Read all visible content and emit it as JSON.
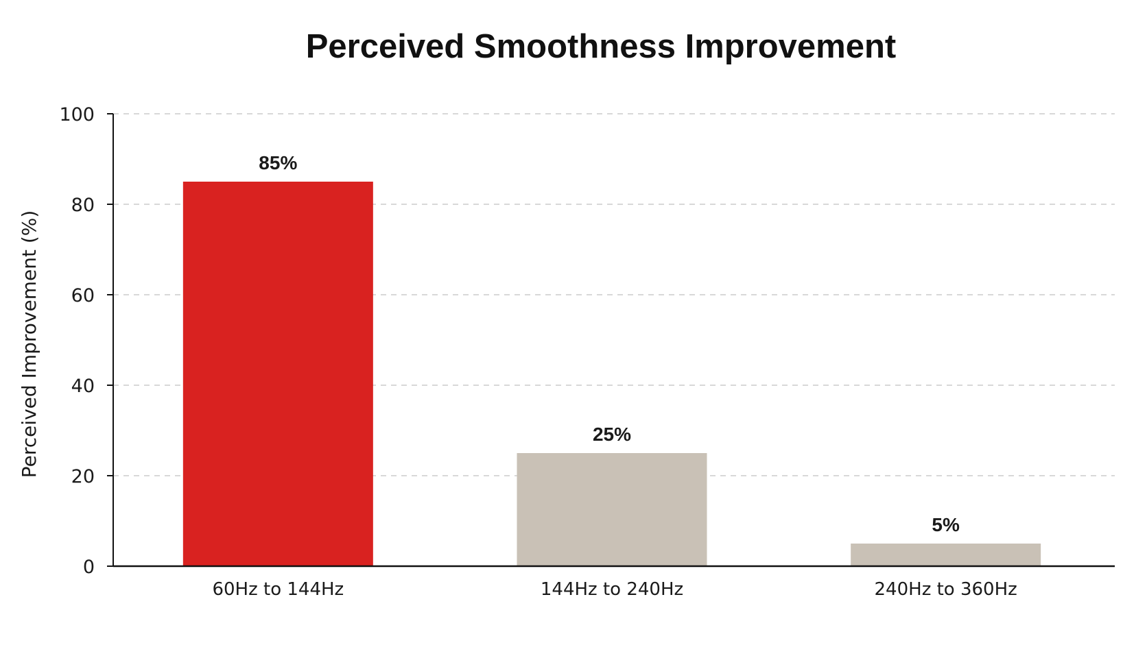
{
  "chart_data": {
    "type": "bar",
    "title": "Perceived Smoothness Improvement",
    "xlabel": "",
    "ylabel": "Perceived Improvement (%)",
    "categories": [
      "60Hz to 144Hz",
      "144Hz to 240Hz",
      "240Hz to 360Hz"
    ],
    "values": [
      85,
      25,
      5
    ],
    "data_labels": [
      "85%",
      "25%",
      "5%"
    ],
    "bar_colors": [
      "#d92220",
      "#c9c1b6",
      "#c9c1b6"
    ],
    "ylim": [
      0,
      100
    ],
    "yticks": [
      0,
      20,
      40,
      60,
      80,
      100
    ],
    "ytick_labels": [
      "0",
      "20",
      "40",
      "60",
      "80",
      "100"
    ],
    "grid": true,
    "grid_style": "dashed",
    "legend": "none",
    "colors": {
      "highlight": "#d92220",
      "neutral": "#c9c1b6",
      "axis": "#111111",
      "grid": "#cccccc"
    }
  }
}
